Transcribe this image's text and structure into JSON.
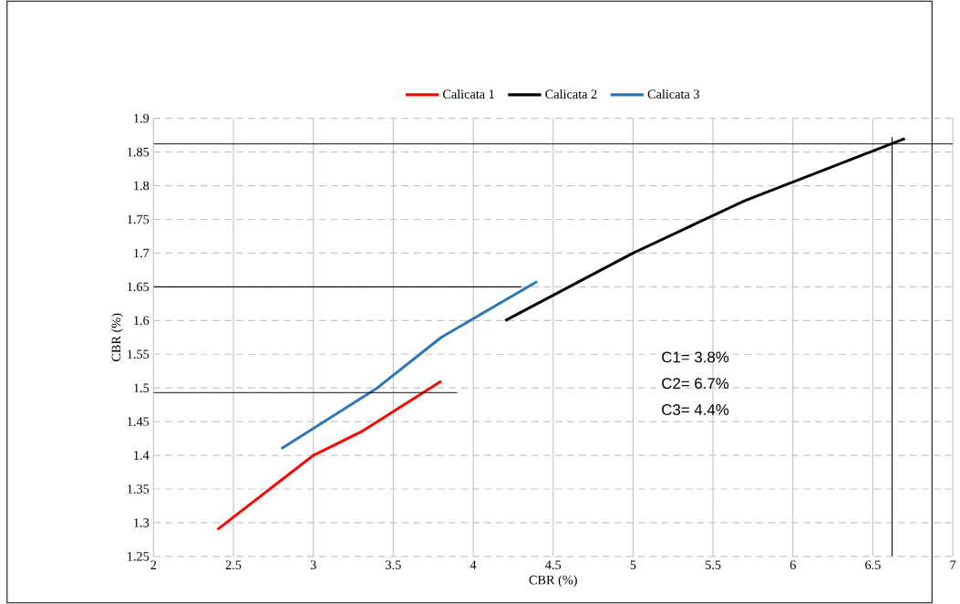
{
  "chart_data": {
    "type": "line",
    "xlabel": "CBR (%)",
    "ylabel": "CBR (%)",
    "xlim": [
      2,
      7
    ],
    "ylim": [
      1.25,
      1.9
    ],
    "xticks": [
      2,
      2.5,
      3,
      3.5,
      4,
      4.5,
      5,
      5.5,
      6,
      6.5,
      7
    ],
    "yticks": [
      1.25,
      1.3,
      1.35,
      1.4,
      1.45,
      1.5,
      1.55,
      1.6,
      1.65,
      1.7,
      1.75,
      1.8,
      1.85,
      1.9
    ],
    "grid": true,
    "legend": "top",
    "marker": "none",
    "line_style": "solid",
    "series": [
      {
        "name": "Calicata 1",
        "color": "#ff0000",
        "x": [
          2.4,
          3.0,
          3.3,
          3.8
        ],
        "values": [
          1.29,
          1.4,
          1.435,
          1.51
        ]
      },
      {
        "name": "Calicata 2",
        "color": "#000000",
        "x": [
          4.2,
          5.0,
          5.7,
          6.7
        ],
        "values": [
          1.6,
          1.7,
          1.778,
          1.87
        ]
      },
      {
        "name": "Calicata 3",
        "color": "#2e75b6",
        "x": [
          2.8,
          3.4,
          3.8,
          4.4
        ],
        "values": [
          1.41,
          1.5,
          1.575,
          1.658
        ]
      },
      {
        "color": "#000000",
        "x": [
          2.0,
          7.0
        ],
        "values": [
          1.862,
          1.862
        ]
      },
      {
        "color": "#000000",
        "x": [
          2.0,
          4.3
        ],
        "values": [
          1.65,
          1.65
        ]
      },
      {
        "color": "#000000",
        "x": [
          2.0,
          3.9
        ],
        "values": [
          1.493,
          1.493
        ]
      },
      {
        "color": "#000000",
        "x": [
          6.62,
          6.62
        ],
        "values": [
          1.25,
          1.872
        ]
      }
    ],
    "annotations": [
      "C1= 3.8%",
      "C2= 6.7%",
      "C3= 4.4%"
    ]
  }
}
